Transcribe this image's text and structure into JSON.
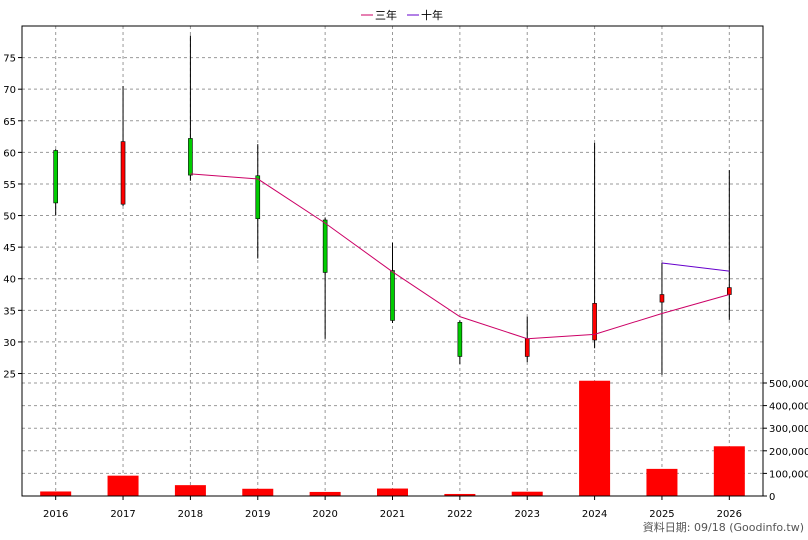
{
  "chart_data": {
    "type": "candlestick",
    "legend": [
      "三年",
      "十年"
    ],
    "categories": [
      "2016",
      "2017",
      "2018",
      "2019",
      "2020",
      "2021",
      "2022",
      "2023",
      "2024",
      "2025",
      "2026"
    ],
    "price_axis": {
      "ylim": [
        23.5,
        80
      ],
      "ticks": [
        25,
        30,
        35,
        40,
        45,
        50,
        55,
        60,
        65,
        70,
        75
      ]
    },
    "candles": [
      {
        "x": "2016",
        "high": 60.5,
        "low": 50.0,
        "open": 52.0,
        "close": 60.3,
        "dir": "down"
      },
      {
        "x": "2017",
        "high": 70.5,
        "low": 51.5,
        "open": 51.8,
        "close": 61.7,
        "dir": "up"
      },
      {
        "x": "2018",
        "high": 78.5,
        "low": 55.5,
        "open": 56.4,
        "close": 62.2,
        "dir": "down"
      },
      {
        "x": "2019",
        "high": 61.3,
        "low": 43.2,
        "open": 49.5,
        "close": 56.3,
        "dir": "down"
      },
      {
        "x": "2020",
        "high": 49.7,
        "low": 30.5,
        "open": 41.0,
        "close": 49.3,
        "dir": "down"
      },
      {
        "x": "2021",
        "high": 45.7,
        "low": 33.0,
        "open": 33.4,
        "close": 41.3,
        "dir": "down"
      },
      {
        "x": "2022",
        "high": 33.4,
        "low": 26.5,
        "open": 27.7,
        "close": 33.1,
        "dir": "down"
      },
      {
        "x": "2023",
        "high": 34.0,
        "low": 26.8,
        "open": 27.7,
        "close": 30.5,
        "dir": "up"
      },
      {
        "x": "2024",
        "high": 61.5,
        "low": 29.0,
        "open": 30.3,
        "close": 36.1,
        "dir": "up"
      },
      {
        "x": "2025",
        "high": 42.5,
        "low": 24.8,
        "open": 36.3,
        "close": 37.5,
        "dir": "up"
      },
      {
        "x": "2026",
        "high": 57.2,
        "low": 33.5,
        "open": 37.5,
        "close": 38.6,
        "dir": "up"
      }
    ],
    "series": [
      {
        "name": "三年",
        "color": "#cc0066",
        "points": [
          [
            "2018",
            56.6
          ],
          [
            "2019",
            55.8
          ],
          [
            "2020",
            48.8
          ],
          [
            "2021",
            41.1
          ],
          [
            "2022",
            34.0
          ],
          [
            "2023",
            30.5
          ],
          [
            "2024",
            31.2
          ],
          [
            "2025",
            34.5
          ],
          [
            "2026",
            37.5
          ]
        ]
      },
      {
        "name": "十年",
        "color": "#6600cc",
        "points": [
          [
            "2025",
            42.5
          ],
          [
            "2026",
            41.2
          ]
        ]
      }
    ],
    "volume": {
      "ylim": [
        0,
        500000
      ],
      "ticks": [
        0,
        100000,
        200000,
        300000,
        400000,
        500000
      ],
      "tick_labels": [
        "0",
        "100,000",
        "200,000",
        "300,000",
        "400,000",
        "500,000"
      ],
      "values": [
        20000,
        90000,
        48000,
        32000,
        18000,
        33000,
        9000,
        19000,
        510000,
        120000,
        220000
      ]
    },
    "colors": {
      "up": "#ff0000",
      "down": "#00cc00",
      "volume": "#ff0000",
      "grid": "#999999"
    },
    "grid": true,
    "legend_position": "top-center"
  },
  "footer": "資料日期: 09/18  (Goodinfo.tw)"
}
